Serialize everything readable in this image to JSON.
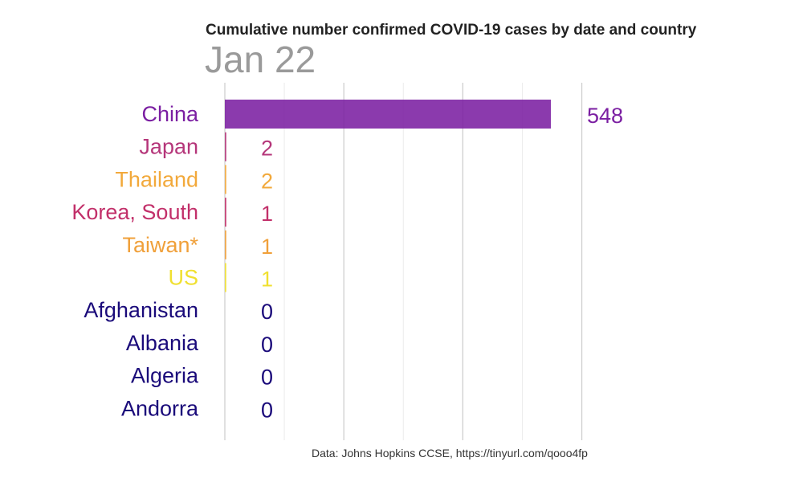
{
  "chart_data": {
    "type": "bar",
    "orientation": "horizontal",
    "title": "Cumulative number confirmed COVID-19 cases by date and country",
    "subtitle": "Jan 22",
    "caption": "Data: Johns Hopkins CCSE, https://tinyurl.com/qooo4fp",
    "categories": [
      "China",
      "Japan",
      "Thailand",
      "Korea, South",
      "Taiwan*",
      "US",
      "Afghanistan",
      "Albania",
      "Algeria",
      "Andorra"
    ],
    "values": [
      548,
      2,
      2,
      1,
      1,
      1,
      0,
      0,
      0,
      0
    ],
    "value_labels": [
      "548",
      "2",
      "2",
      "1",
      "1",
      "1",
      "0",
      "0",
      "0",
      "0"
    ],
    "colors": [
      "#7b1fa2",
      "#b5367a",
      "#f2a93b",
      "#c2306a",
      "#f0a03a",
      "#f0e030",
      "#1a0a7a",
      "#1a0a7a",
      "#1a0a7a",
      "#1a0a7a"
    ],
    "xlim": [
      0,
      600
    ],
    "grid": true,
    "legend": "none"
  }
}
